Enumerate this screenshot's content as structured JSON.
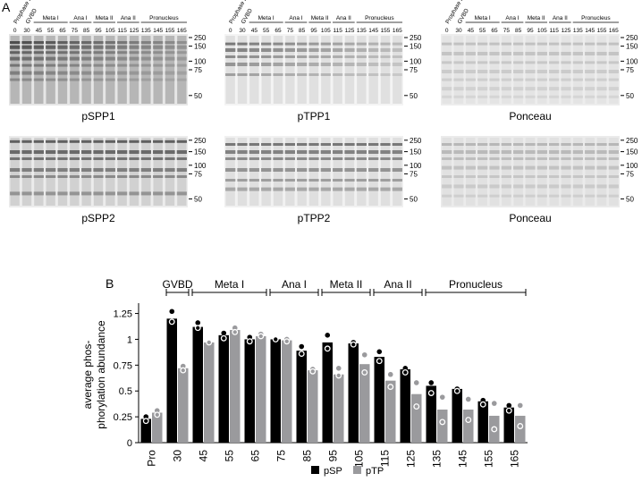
{
  "panel_a": {
    "label": "A",
    "blots": [
      {
        "caption": "pSPP1",
        "style": "dark"
      },
      {
        "caption": "pTPP1",
        "style": "light"
      },
      {
        "caption": "Ponceau",
        "style": "ponceau"
      },
      {
        "caption": "pSPP2",
        "style": "medium"
      },
      {
        "caption": "pTPP2",
        "style": "medium2"
      },
      {
        "caption": "Ponceau",
        "style": "ponceau2"
      }
    ],
    "lanes": [
      "0",
      "30",
      "45",
      "55",
      "65",
      "75",
      "85",
      "95",
      "105",
      "115",
      "125",
      "135",
      "145",
      "155",
      "165"
    ],
    "stage_headers": [
      {
        "label": "Prophase I",
        "lanes": [
          0,
          0
        ],
        "rotated": true
      },
      {
        "label": "GVBD",
        "lanes": [
          1,
          1
        ],
        "rotated": true
      },
      {
        "label": "Meta I",
        "lanes": [
          2,
          4
        ]
      },
      {
        "label": "Ana I",
        "lanes": [
          5,
          6
        ]
      },
      {
        "label": "Meta II",
        "lanes": [
          7,
          8
        ]
      },
      {
        "label": "Ana II",
        "lanes": [
          9,
          10
        ]
      },
      {
        "label": "Pronucleus",
        "lanes": [
          11,
          14
        ]
      }
    ],
    "markers": [
      "250",
      "150",
      "100",
      "75",
      "50"
    ]
  },
  "chart_data": {
    "panel_label": "B",
    "type": "bar",
    "ylabel": "average phos-\nphorylation abundance",
    "ylim": [
      0,
      1.35
    ],
    "yticks": [
      0,
      0.25,
      0.5,
      0.75,
      1,
      1.25
    ],
    "ytick_labels": [
      "0",
      "0.25",
      "0.5",
      "0.75",
      "1",
      "1.25"
    ],
    "categories": [
      "Pro",
      "30",
      "45",
      "55",
      "65",
      "75",
      "85",
      "95",
      "105",
      "115",
      "125",
      "135",
      "145",
      "155",
      "165"
    ],
    "series": [
      {
        "name": "pSP",
        "color": "#000000",
        "values": [
          0.23,
          1.2,
          1.12,
          1.04,
          1.0,
          1.0,
          0.89,
          0.97,
          0.96,
          0.83,
          0.71,
          0.55,
          0.52,
          0.4,
          0.34
        ],
        "replicates": [
          [
            0.25,
            0.21
          ],
          [
            1.27,
            1.17
          ],
          [
            1.16,
            1.11
          ],
          [
            1.06,
            1.01
          ],
          [
            1.02,
            0.98
          ],
          [
            1.0,
            1.0
          ],
          [
            0.93,
            0.86
          ],
          [
            1.04,
            0.91
          ],
          [
            0.97,
            0.95
          ],
          [
            0.88,
            0.79
          ],
          [
            0.72,
            0.68
          ],
          [
            0.58,
            0.48
          ],
          [
            0.52,
            0.5
          ],
          [
            0.41,
            0.37
          ],
          [
            0.36,
            0.31
          ]
        ]
      },
      {
        "name": "pTP",
        "color": "#9a9a9d",
        "values": [
          0.29,
          0.72,
          0.97,
          1.09,
          1.03,
          0.99,
          0.7,
          0.66,
          0.76,
          0.6,
          0.47,
          0.32,
          0.32,
          0.26,
          0.26
        ],
        "replicates": [
          [
            0.31,
            0.27
          ],
          [
            0.74,
            0.7
          ],
          [
            0.96,
            0.97
          ],
          [
            1.11,
            1.07
          ],
          [
            1.05,
            1.03
          ],
          [
            1.0,
            0.98
          ],
          [
            0.71,
            0.69
          ],
          [
            0.72,
            0.65
          ],
          [
            0.85,
            0.68
          ],
          [
            0.66,
            0.54
          ],
          [
            0.58,
            0.35
          ],
          [
            0.44,
            0.2
          ],
          [
            0.42,
            0.22
          ],
          [
            0.38,
            0.13
          ],
          [
            0.36,
            0.16
          ]
        ]
      }
    ],
    "stage_brackets": [
      {
        "label": "GVBD",
        "from": 1,
        "to": 1
      },
      {
        "label": "Meta I",
        "from": 2,
        "to": 4
      },
      {
        "label": "Ana I",
        "from": 5,
        "to": 6
      },
      {
        "label": "Meta II",
        "from": 7,
        "to": 8
      },
      {
        "label": "Ana II",
        "from": 9,
        "to": 10
      },
      {
        "label": "Pronucleus",
        "from": 11,
        "to": 14
      }
    ],
    "legend": {
      "placement": "bottom-center",
      "items": [
        "pSP",
        "pTP"
      ]
    }
  }
}
